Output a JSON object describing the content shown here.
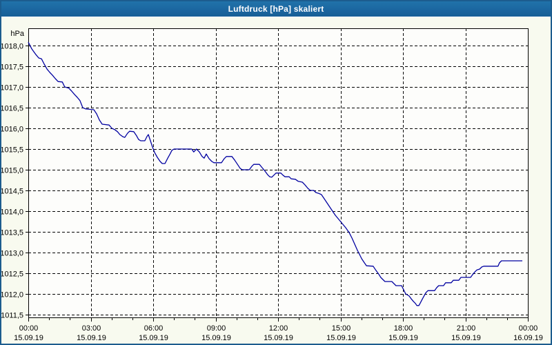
{
  "window": {
    "title": "Luftdruck [hPa] skaliert"
  },
  "colors": {
    "titlebar": "#1b66a0",
    "window_border": "#1c5c8e",
    "outer_background": "#f8faef",
    "plot_background": "#fdfdfb",
    "grid": "#000000",
    "line": "#0000a0"
  },
  "chart_data": {
    "type": "line",
    "title": "Luftdruck [hPa] skaliert",
    "ylabel": "hPa",
    "xlabel": "",
    "grid": "dashed",
    "legend_position": "none",
    "y_axis": {
      "unit": "hPa",
      "min": 1011.5,
      "max": 1018.0,
      "tick_step": 0.5,
      "ticks": [
        {
          "value": 1018.0,
          "label": "1018,0"
        },
        {
          "value": 1017.5,
          "label": "1017,5"
        },
        {
          "value": 1017.0,
          "label": "1017,0"
        },
        {
          "value": 1016.5,
          "label": "1016,5"
        },
        {
          "value": 1016.0,
          "label": "1016,0"
        },
        {
          "value": 1015.5,
          "label": "1015,5"
        },
        {
          "value": 1015.0,
          "label": "1015,0"
        },
        {
          "value": 1014.5,
          "label": "1014,5"
        },
        {
          "value": 1014.0,
          "label": "1014,0"
        },
        {
          "value": 1013.5,
          "label": "1013,5"
        },
        {
          "value": 1013.0,
          "label": "1013,0"
        },
        {
          "value": 1012.5,
          "label": "1012,5"
        },
        {
          "value": 1012.0,
          "label": "1012,0"
        },
        {
          "value": 1011.5,
          "label": "1011,5"
        }
      ]
    },
    "x_axis": {
      "range_minutes": 1440,
      "minor_tick_minutes": 60,
      "ticks": [
        {
          "minutes": 0,
          "time": "00:00",
          "date": "15.09.19"
        },
        {
          "minutes": 180,
          "time": "03:00",
          "date": "15.09.19"
        },
        {
          "minutes": 360,
          "time": "06:00",
          "date": "15.09.19"
        },
        {
          "minutes": 540,
          "time": "09:00",
          "date": "15.09.19"
        },
        {
          "minutes": 720,
          "time": "12:00",
          "date": "15.09.19"
        },
        {
          "minutes": 900,
          "time": "15:00",
          "date": "15.09.19"
        },
        {
          "minutes": 1080,
          "time": "18:00",
          "date": "15.09.19"
        },
        {
          "minutes": 1260,
          "time": "21:00",
          "date": "15.09.19"
        },
        {
          "minutes": 1440,
          "time": "00:00",
          "date": "16.09.19"
        }
      ]
    },
    "series": [
      {
        "name": "Luftdruck",
        "color": "#0000a0",
        "points": [
          [
            0,
            1018.08
          ],
          [
            10,
            1017.92
          ],
          [
            16,
            1017.85
          ],
          [
            22,
            1017.78
          ],
          [
            30,
            1017.7
          ],
          [
            38,
            1017.68
          ],
          [
            46,
            1017.55
          ],
          [
            54,
            1017.43
          ],
          [
            62,
            1017.35
          ],
          [
            70,
            1017.28
          ],
          [
            78,
            1017.2
          ],
          [
            86,
            1017.13
          ],
          [
            98,
            1017.12
          ],
          [
            105,
            1017.0
          ],
          [
            117,
            1016.97
          ],
          [
            125,
            1016.9
          ],
          [
            133,
            1016.82
          ],
          [
            141,
            1016.75
          ],
          [
            149,
            1016.67
          ],
          [
            157,
            1016.5
          ],
          [
            165,
            1016.47
          ],
          [
            189,
            1016.45
          ],
          [
            197,
            1016.35
          ],
          [
            205,
            1016.2
          ],
          [
            213,
            1016.1
          ],
          [
            233,
            1016.08
          ],
          [
            241,
            1016.0
          ],
          [
            249,
            1015.97
          ],
          [
            257,
            1015.92
          ],
          [
            264,
            1015.85
          ],
          [
            272,
            1015.8
          ],
          [
            278,
            1015.78
          ],
          [
            286,
            1015.88
          ],
          [
            292,
            1015.93
          ],
          [
            304,
            1015.92
          ],
          [
            312,
            1015.82
          ],
          [
            318,
            1015.73
          ],
          [
            324,
            1015.7
          ],
          [
            336,
            1015.7
          ],
          [
            342,
            1015.8
          ],
          [
            346,
            1015.85
          ],
          [
            352,
            1015.7
          ],
          [
            358,
            1015.55
          ],
          [
            364,
            1015.42
          ],
          [
            372,
            1015.3
          ],
          [
            380,
            1015.2
          ],
          [
            386,
            1015.15
          ],
          [
            394,
            1015.15
          ],
          [
            402,
            1015.28
          ],
          [
            408,
            1015.37
          ],
          [
            414,
            1015.47
          ],
          [
            420,
            1015.5
          ],
          [
            471,
            1015.5
          ],
          [
            477,
            1015.43
          ],
          [
            485,
            1015.5
          ],
          [
            493,
            1015.43
          ],
          [
            501,
            1015.32
          ],
          [
            507,
            1015.28
          ],
          [
            513,
            1015.38
          ],
          [
            521,
            1015.27
          ],
          [
            529,
            1015.2
          ],
          [
            535,
            1015.17
          ],
          [
            557,
            1015.17
          ],
          [
            565,
            1015.27
          ],
          [
            571,
            1015.32
          ],
          [
            587,
            1015.32
          ],
          [
            595,
            1015.23
          ],
          [
            603,
            1015.13
          ],
          [
            611,
            1015.03
          ],
          [
            617,
            1015.0
          ],
          [
            637,
            1015.0
          ],
          [
            644,
            1015.08
          ],
          [
            650,
            1015.13
          ],
          [
            666,
            1015.13
          ],
          [
            674,
            1015.05
          ],
          [
            682,
            1014.97
          ],
          [
            690,
            1014.88
          ],
          [
            696,
            1014.83
          ],
          [
            702,
            1014.82
          ],
          [
            708,
            1014.87
          ],
          [
            714,
            1014.92
          ],
          [
            728,
            1014.92
          ],
          [
            734,
            1014.87
          ],
          [
            740,
            1014.83
          ],
          [
            752,
            1014.83
          ],
          [
            758,
            1014.78
          ],
          [
            770,
            1014.77
          ],
          [
            778,
            1014.72
          ],
          [
            790,
            1014.7
          ],
          [
            798,
            1014.63
          ],
          [
            806,
            1014.55
          ],
          [
            813,
            1014.5
          ],
          [
            823,
            1014.5
          ],
          [
            829,
            1014.45
          ],
          [
            837,
            1014.43
          ],
          [
            845,
            1014.4
          ],
          [
            853,
            1014.3
          ],
          [
            861,
            1014.2
          ],
          [
            869,
            1014.1
          ],
          [
            877,
            1014.0
          ],
          [
            885,
            1013.9
          ],
          [
            895,
            1013.8
          ],
          [
            905,
            1013.7
          ],
          [
            915,
            1013.6
          ],
          [
            925,
            1013.48
          ],
          [
            933,
            1013.35
          ],
          [
            941,
            1013.2
          ],
          [
            949,
            1013.05
          ],
          [
            955,
            1012.95
          ],
          [
            961,
            1012.85
          ],
          [
            969,
            1012.75
          ],
          [
            975,
            1012.68
          ],
          [
            994,
            1012.67
          ],
          [
            1002,
            1012.57
          ],
          [
            1010,
            1012.48
          ],
          [
            1016,
            1012.4
          ],
          [
            1022,
            1012.35
          ],
          [
            1028,
            1012.3
          ],
          [
            1048,
            1012.3
          ],
          [
            1054,
            1012.25
          ],
          [
            1060,
            1012.2
          ],
          [
            1076,
            1012.2
          ],
          [
            1082,
            1012.1
          ],
          [
            1088,
            1012.0
          ],
          [
            1098,
            1011.95
          ],
          [
            1104,
            1011.88
          ],
          [
            1110,
            1011.82
          ],
          [
            1116,
            1011.77
          ],
          [
            1120,
            1011.72
          ],
          [
            1126,
            1011.72
          ],
          [
            1130,
            1011.78
          ],
          [
            1136,
            1011.88
          ],
          [
            1142,
            1011.97
          ],
          [
            1146,
            1012.03
          ],
          [
            1152,
            1012.08
          ],
          [
            1171,
            1012.08
          ],
          [
            1177,
            1012.15
          ],
          [
            1183,
            1012.2
          ],
          [
            1197,
            1012.2
          ],
          [
            1203,
            1012.27
          ],
          [
            1219,
            1012.27
          ],
          [
            1225,
            1012.33
          ],
          [
            1241,
            1012.33
          ],
          [
            1247,
            1012.4
          ],
          [
            1275,
            1012.4
          ],
          [
            1281,
            1012.47
          ],
          [
            1287,
            1012.53
          ],
          [
            1293,
            1012.58
          ],
          [
            1301,
            1012.6
          ],
          [
            1307,
            1012.65
          ],
          [
            1313,
            1012.67
          ],
          [
            1354,
            1012.67
          ],
          [
            1358,
            1012.75
          ],
          [
            1364,
            1012.8
          ],
          [
            1424,
            1012.8
          ]
        ]
      }
    ]
  }
}
